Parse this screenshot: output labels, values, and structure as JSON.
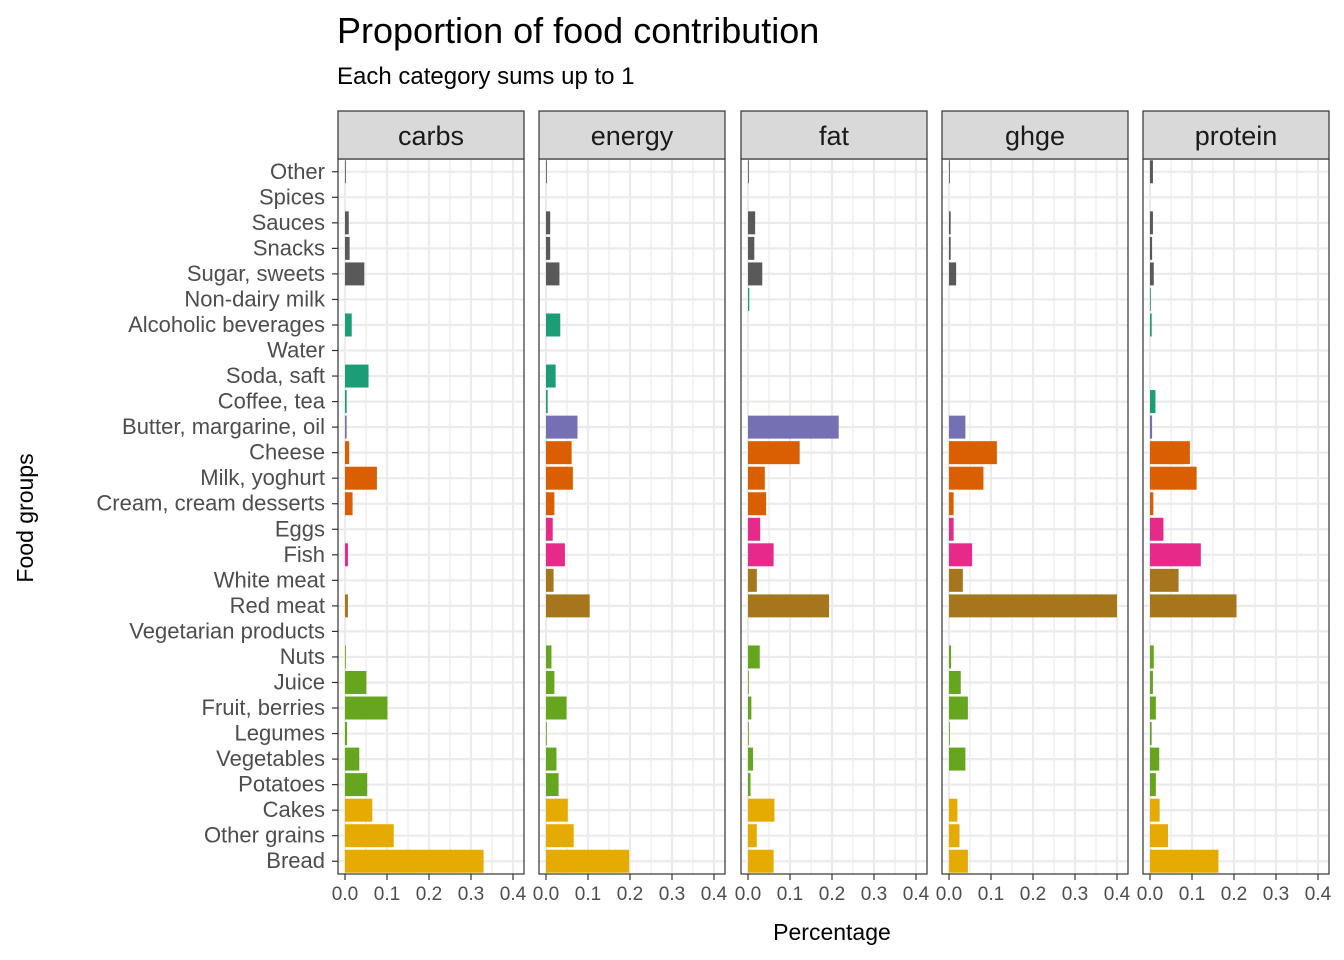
{
  "chart_data": {
    "type": "bar",
    "orientation": "horizontal",
    "title": "Proportion of food contribution",
    "subtitle": "Each category sums up to 1",
    "xlabel": "Percentage",
    "ylabel": "Food groups",
    "xlim": [
      0,
      0.4
    ],
    "xticks": [
      0.0,
      0.1,
      0.2,
      0.3,
      0.4
    ],
    "xtick_labels": [
      "0.0",
      "0.1",
      "0.2",
      "0.3",
      "0.4"
    ],
    "grid": true,
    "facets": [
      "carbs",
      "energy",
      "fat",
      "ghge",
      "protein"
    ],
    "categories": [
      "Other",
      "Spices",
      "Sauces",
      "Snacks",
      "Sugar, sweets",
      "Non-dairy milk",
      "Alcoholic beverages",
      "Water",
      "Soda, saft",
      "Coffee, tea",
      "Butter, margarine, oil",
      "Cheese",
      "Milk, yoghurt",
      "Cream, cream desserts",
      "Eggs",
      "Fish",
      "White meat",
      "Red meat",
      "Vegetarian products",
      "Nuts",
      "Juice",
      "Fruit, berries",
      "Legumes",
      "Vegetables",
      "Potatoes",
      "Cakes",
      "Other grains",
      "Bread"
    ],
    "category_colors": [
      "#595959",
      "#595959",
      "#595959",
      "#595959",
      "#595959",
      "#1b9e77",
      "#1b9e77",
      "#1b9e77",
      "#1b9e77",
      "#1b9e77",
      "#7570b3",
      "#d95f02",
      "#d95f02",
      "#d95f02",
      "#e7298a",
      "#e7298a",
      "#a6761d",
      "#a6761d",
      "#66a61e",
      "#66a61e",
      "#66a61e",
      "#66a61e",
      "#66a61e",
      "#66a61e",
      "#66a61e",
      "#e6ab02",
      "#e6ab02",
      "#e6ab02"
    ],
    "series": [
      {
        "name": "carbs",
        "values": [
          0.002,
          0.0,
          0.009,
          0.011,
          0.046,
          0.0,
          0.016,
          0.0,
          0.056,
          0.004,
          0.004,
          0.01,
          0.076,
          0.018,
          0.0,
          0.007,
          0.0,
          0.007,
          0.0,
          0.002,
          0.051,
          0.101,
          0.005,
          0.034,
          0.053,
          0.065,
          0.116,
          0.33
        ]
      },
      {
        "name": "energy",
        "values": [
          0.002,
          0.0,
          0.01,
          0.01,
          0.032,
          0.0,
          0.034,
          0.0,
          0.023,
          0.004,
          0.075,
          0.061,
          0.064,
          0.02,
          0.016,
          0.045,
          0.018,
          0.104,
          0.0,
          0.013,
          0.02,
          0.049,
          0.002,
          0.025,
          0.03,
          0.052,
          0.066,
          0.198
        ]
      },
      {
        "name": "fat",
        "values": [
          0.002,
          0.0,
          0.017,
          0.015,
          0.034,
          0.003,
          0.0,
          0.0,
          0.0,
          0.0,
          0.216,
          0.123,
          0.04,
          0.043,
          0.029,
          0.061,
          0.021,
          0.193,
          0.0,
          0.028,
          0.002,
          0.008,
          0.002,
          0.012,
          0.006,
          0.063,
          0.021,
          0.061
        ]
      },
      {
        "name": "ghge",
        "values": [
          0.002,
          0.0,
          0.004,
          0.004,
          0.017,
          0.0,
          0.0,
          0.0,
          0.0,
          0.0,
          0.039,
          0.114,
          0.082,
          0.011,
          0.011,
          0.055,
          0.033,
          0.4,
          0.0,
          0.005,
          0.028,
          0.045,
          0.002,
          0.039,
          0.0,
          0.02,
          0.025,
          0.045
        ]
      },
      {
        "name": "protein",
        "values": [
          0.007,
          0.0,
          0.007,
          0.005,
          0.009,
          0.002,
          0.004,
          0.0,
          0.0,
          0.013,
          0.005,
          0.095,
          0.111,
          0.008,
          0.032,
          0.121,
          0.068,
          0.206,
          0.0,
          0.009,
          0.007,
          0.014,
          0.004,
          0.022,
          0.014,
          0.023,
          0.043,
          0.163
        ]
      }
    ]
  }
}
